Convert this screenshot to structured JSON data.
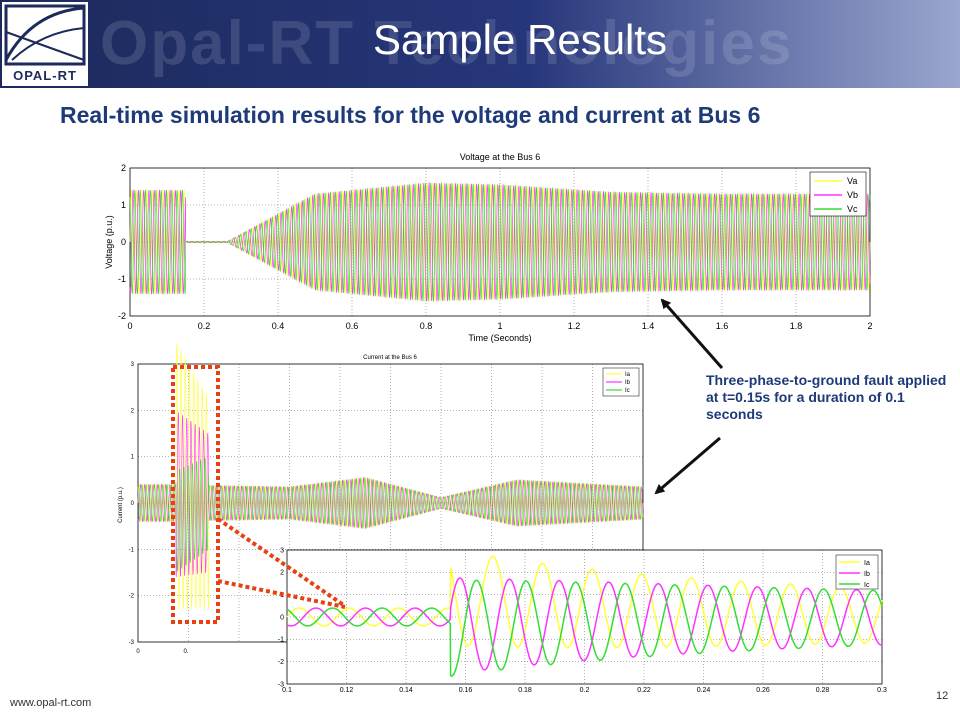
{
  "slide": {
    "title": "Sample Results",
    "watermark": "Opal-RT Technologies",
    "subtitle": "Real-time simulation results for the voltage and current at Bus 6",
    "annotation": "Three-phase-to-ground fault applied at t=0.15s for a duration of 0.1 seconds",
    "footer_url": "www.opal-rt.com",
    "page_number": "12",
    "logo_text": "OPAL-RT",
    "colors": {
      "header": "#1d2a5c",
      "subtitle": "#1e3a78",
      "phase_a": "#ffff33",
      "phase_b": "#ff33ff",
      "phase_c": "#33dd33",
      "highlight": "#e84010",
      "arrow": "#111111"
    }
  },
  "chart_data": [
    {
      "type": "line",
      "title": "Voltage at the Bus 6",
      "xlabel": "Time (Seconds)",
      "ylabel": "Voltage (p.u.)",
      "xlim": [
        0,
        2
      ],
      "ylim": [
        -2,
        2
      ],
      "xticks": [
        "0",
        "0.2",
        "0.4",
        "0.6",
        "0.8",
        "1",
        "1.2",
        "1.4",
        "1.6",
        "1.8",
        "2"
      ],
      "yticks": [
        "2",
        "1",
        "0",
        "-1",
        "-2"
      ],
      "legend": [
        "Va",
        "Vb",
        "Vc"
      ],
      "legend_position": "top-right",
      "grid": true,
      "fault_window": [
        0.15,
        0.26
      ],
      "envelope": {
        "t": [
          0,
          0.15,
          0.26,
          0.5,
          0.8,
          1.0,
          1.3,
          1.6,
          2.0
        ],
        "amp": [
          1.4,
          1.4,
          0,
          1.3,
          1.6,
          1.55,
          1.35,
          1.3,
          1.3
        ]
      },
      "cycles_shown": 140
    },
    {
      "type": "line",
      "title": "Current at the Bus 6",
      "xlabel": "",
      "ylabel": "Current (p.u.)",
      "ylim": [
        -3,
        3
      ],
      "yticks": [
        "3",
        "2",
        "1",
        "0",
        "-1",
        "-2",
        "-3"
      ],
      "xticks": [
        "0",
        "0."
      ],
      "legend": [
        "Ia",
        "Ib",
        "Ic"
      ],
      "legend_position": "top-right",
      "grid": true,
      "cycles_shown": 120
    },
    {
      "type": "line",
      "title": "",
      "xlabel": "",
      "ylabel": "",
      "xlim": [
        0.1,
        0.3
      ],
      "ylim": [
        -3,
        3
      ],
      "xticks": [
        "0.1",
        "0.12",
        "0.14",
        "0.16",
        "0.18",
        "0.2",
        "0.22",
        "0.24",
        "0.26",
        "0.28",
        "0.3"
      ],
      "yticks": [
        "3",
        "2",
        "1",
        "0",
        "-1",
        "-2",
        "-3"
      ],
      "legend": [
        "Ia",
        "Ib",
        "Ic"
      ],
      "legend_position": "top-right",
      "grid": true,
      "prefault_amplitude": 0.4,
      "fault_start": 0.155,
      "peak_amplitude": 2.2,
      "frequency_hz": 60
    }
  ]
}
